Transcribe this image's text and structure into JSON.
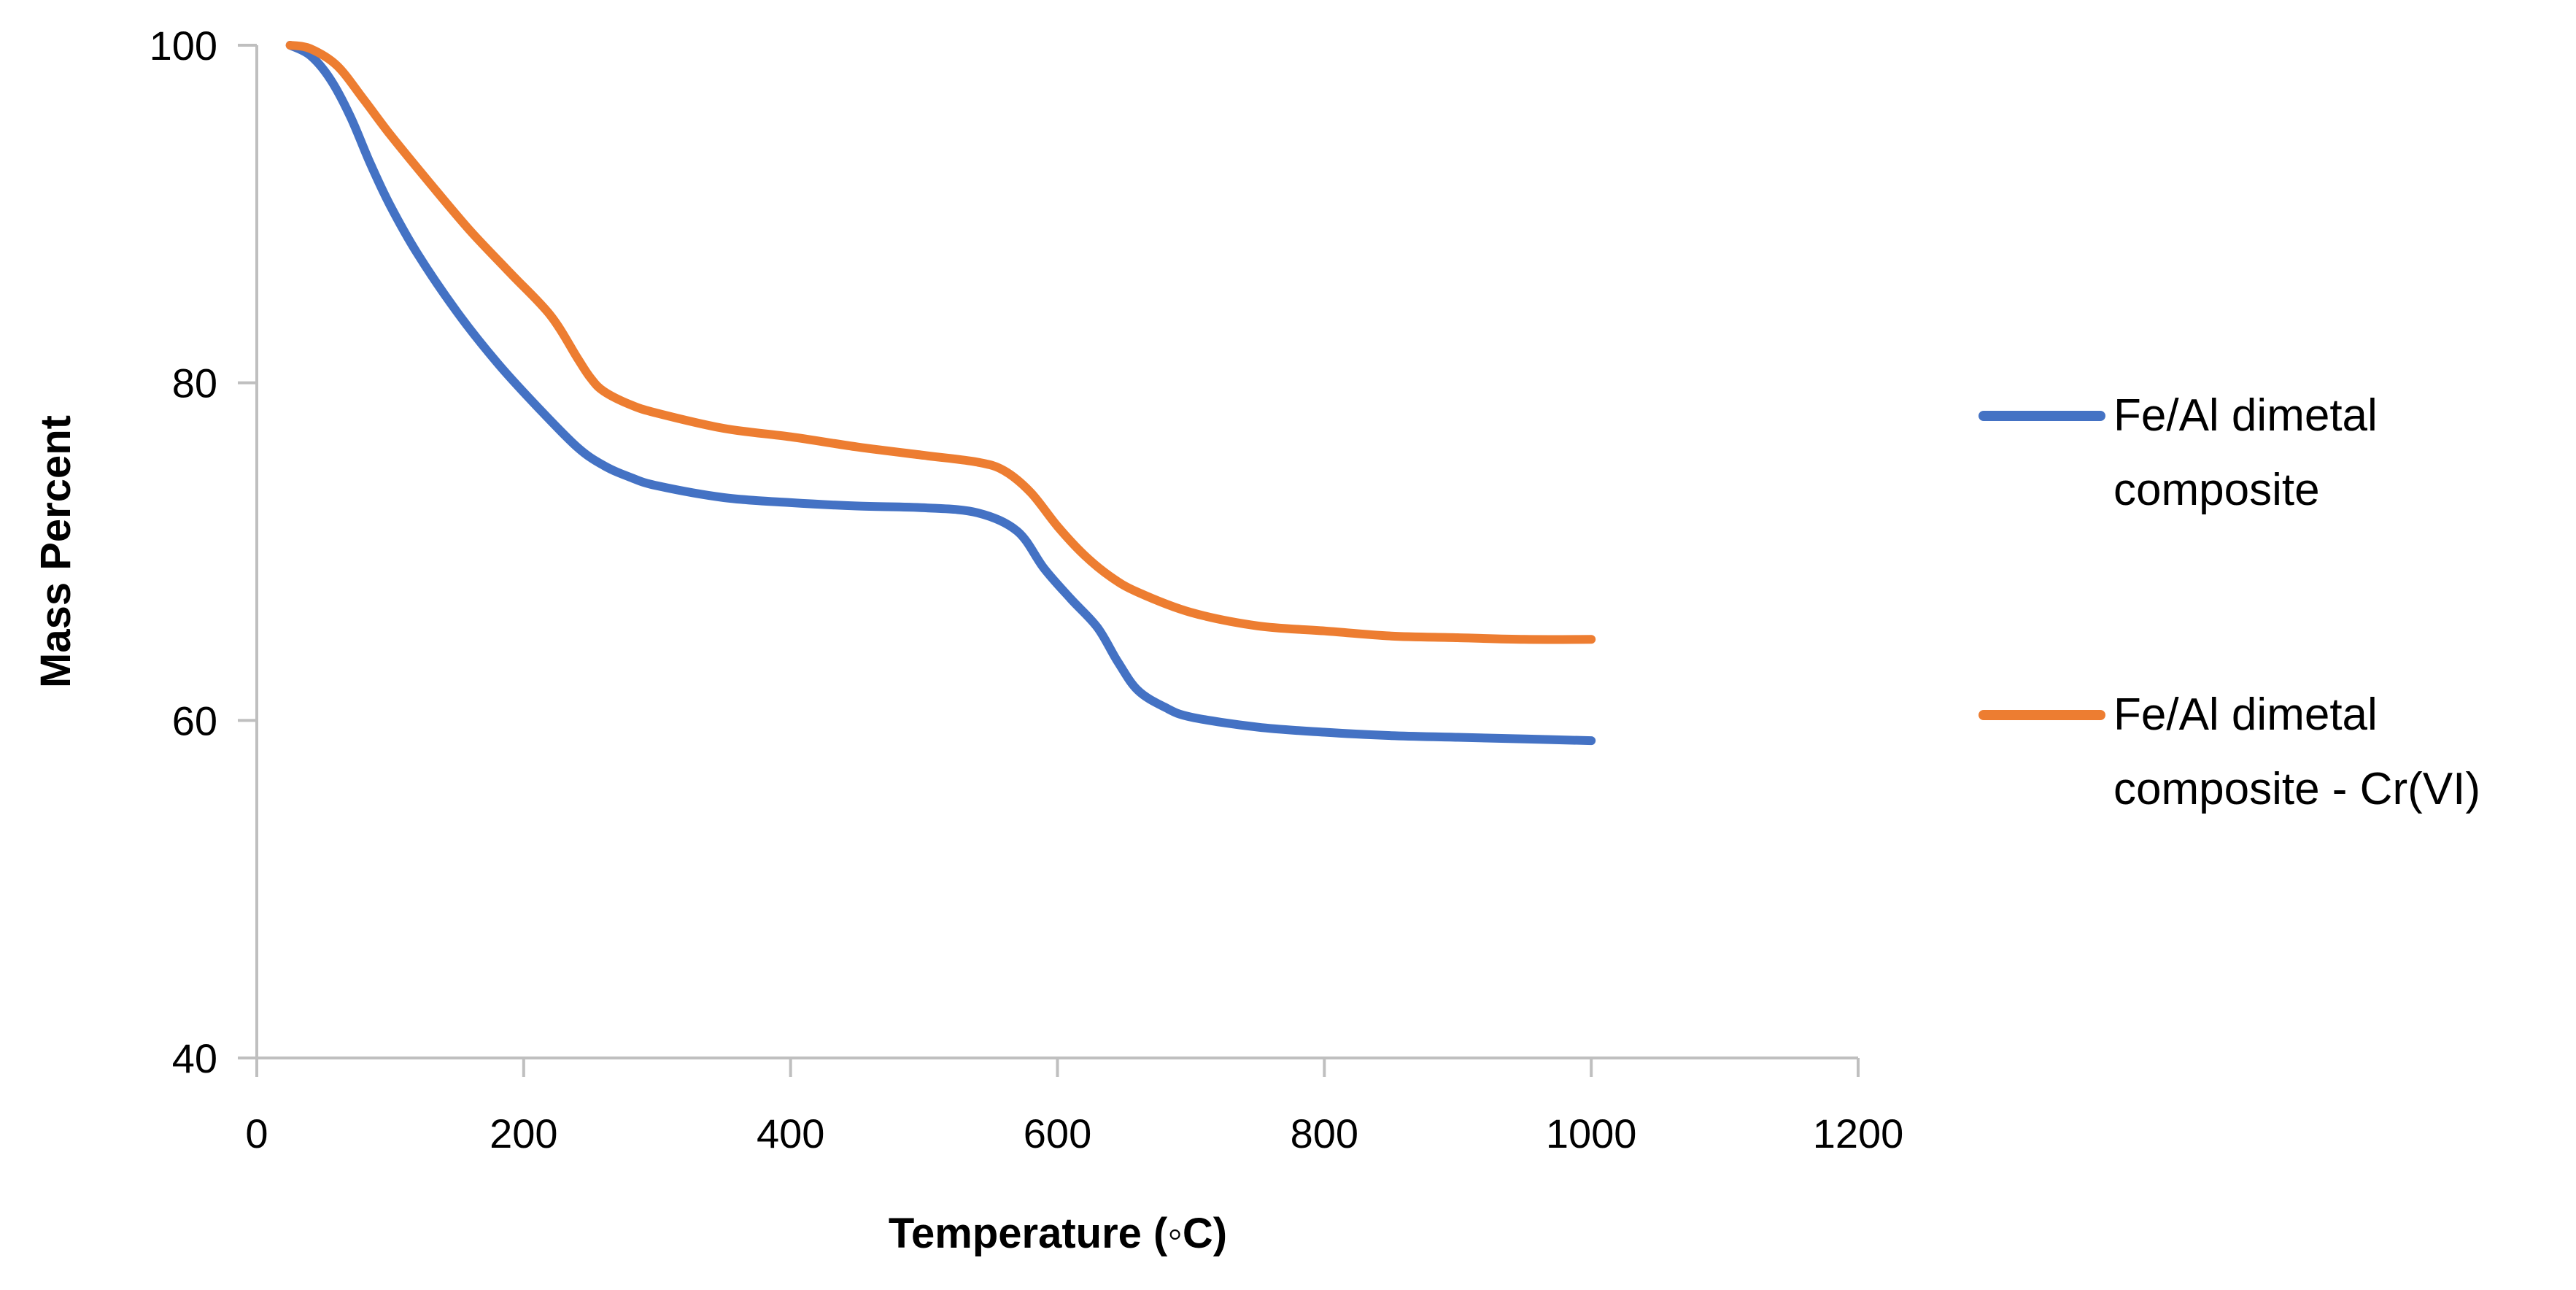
{
  "chart_data": {
    "type": "line",
    "title": "",
    "xlabel": "Temperature (◦C)",
    "ylabel": "Mass Percent",
    "xlim": [
      0,
      1200
    ],
    "ylim": [
      40,
      100
    ],
    "xticks": [
      0,
      200,
      400,
      600,
      800,
      1000,
      1200
    ],
    "yticks": [
      40,
      60,
      80,
      100
    ],
    "grid": false,
    "legend_position": "right",
    "series": [
      {
        "name": "Fe/Al dimetal composite",
        "color": "#4472C4",
        "legend_lines": [
          "Fe/Al dimetal",
          "composite"
        ],
        "x": [
          25,
          40,
          55,
          70,
          85,
          100,
          120,
          150,
          180,
          210,
          240,
          260,
          280,
          300,
          350,
          400,
          450,
          500,
          540,
          570,
          590,
          610,
          630,
          645,
          660,
          680,
          700,
          750,
          800,
          850,
          900,
          950,
          1000
        ],
        "y": [
          100,
          99.4,
          98,
          95.8,
          93,
          90.5,
          87.7,
          84.2,
          81.2,
          78.6,
          76.2,
          75.1,
          74.4,
          73.9,
          73.2,
          72.9,
          72.7,
          72.6,
          72.3,
          71.2,
          69,
          67.2,
          65.5,
          63.5,
          61.8,
          60.8,
          60.2,
          59.6,
          59.3,
          59.1,
          59,
          58.9,
          58.8
        ]
      },
      {
        "name": "Fe/Al dimetal composite - Cr(VI)",
        "color": "#ED7D31",
        "legend_lines": [
          "Fe/Al dimetal",
          "composite - Cr(VI)"
        ],
        "x": [
          25,
          40,
          60,
          80,
          100,
          130,
          160,
          190,
          220,
          240,
          250,
          260,
          280,
          300,
          350,
          400,
          450,
          500,
          540,
          560,
          580,
          600,
          620,
          640,
          660,
          700,
          750,
          800,
          850,
          900,
          950,
          1000
        ],
        "y": [
          100,
          99.8,
          98.8,
          96.8,
          94.7,
          91.8,
          89,
          86.5,
          84,
          81.5,
          80.3,
          79.5,
          78.7,
          78.2,
          77.3,
          76.8,
          76.2,
          75.7,
          75.3,
          74.8,
          73.5,
          71.5,
          69.8,
          68.5,
          67.6,
          66.4,
          65.6,
          65.3,
          65,
          64.9,
          64.8,
          64.8
        ]
      }
    ]
  }
}
